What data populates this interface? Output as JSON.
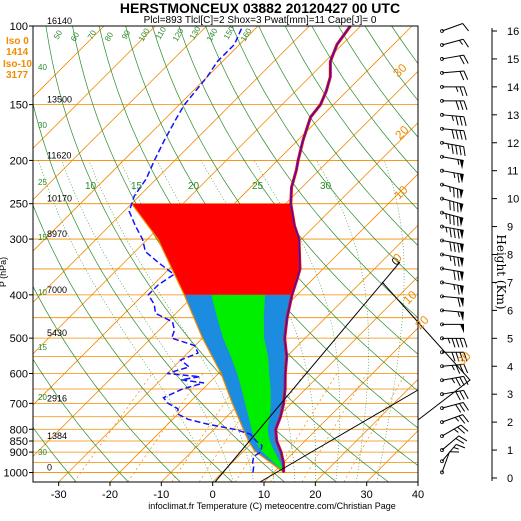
{
  "chart_data": {
    "type": "line",
    "title": "HERSTMONCEUX 03882 20120427 00 UTC",
    "subtitle": "Plcl=893 Tlcl[C]=2 Shox=3 Pwat[mm]=11 Cape[J]= 0",
    "footer": "infoclimat.fr Temperature (C) meteocentre.com/Christian Page",
    "ylabel": "P (hPa)",
    "y2label": "Height (Km)",
    "xlim": [
      -35,
      40
    ],
    "ylim": [
      1050,
      100
    ],
    "x_ticks": [
      "-30",
      "-20",
      "-10",
      "0",
      "10",
      "20",
      "30",
      "40"
    ],
    "p_ticks": [
      {
        "p": 100,
        "label": "100"
      },
      {
        "p": 150,
        "label": "150"
      },
      {
        "p": 200,
        "label": "200"
      },
      {
        "p": 250,
        "label": "250"
      },
      {
        "p": 300,
        "label": "300"
      },
      {
        "p": 400,
        "label": "400"
      },
      {
        "p": 500,
        "label": "500"
      },
      {
        "p": 600,
        "label": "600"
      },
      {
        "p": 700,
        "label": "700"
      },
      {
        "p": 800,
        "label": "800"
      },
      {
        "p": 850,
        "label": "850"
      },
      {
        "p": 900,
        "label": "900"
      },
      {
        "p": 1000,
        "label": "1000"
      }
    ],
    "height_ticks_km": [
      0,
      1,
      2,
      3,
      4,
      5,
      6,
      7,
      8,
      9,
      10,
      11,
      12,
      13,
      14,
      15,
      16
    ],
    "geopotential_labels": [
      {
        "p": 100,
        "label": "16140"
      },
      {
        "p": 150,
        "label": "13500"
      },
      {
        "p": 200,
        "label": "11620"
      },
      {
        "p": 250,
        "label": "10170"
      },
      {
        "p": 300,
        "label": "8970"
      },
      {
        "p": 400,
        "label": "7000"
      },
      {
        "p": 500,
        "label": "5430"
      },
      {
        "p": 700,
        "label": "2916"
      },
      {
        "p": 850,
        "label": "1384"
      },
      {
        "p": 1000,
        "label": "0"
      }
    ],
    "iso_labels": [
      "Iso 0",
      "1414",
      "Iso-10",
      "3177"
    ],
    "mixing_ratio_labels": [
      "50",
      "60",
      "70",
      "80",
      "90",
      "100",
      "110",
      "120",
      "130",
      "140",
      "150",
      "160"
    ],
    "theta_labels": [
      "10",
      "15",
      "20",
      "25",
      "30"
    ],
    "orange_labels": [
      "30",
      "20",
      "10",
      "0",
      "10",
      "20",
      "30"
    ],
    "hodo_label": "0",
    "side_green_labels": [
      "40",
      "30",
      "25",
      "15",
      "10",
      "15",
      "20",
      "30"
    ],
    "temperature": [
      {
        "p": 1000,
        "t": 12.0
      },
      {
        "p": 950,
        "t": 10.0
      },
      {
        "p": 900,
        "t": 7.5
      },
      {
        "p": 850,
        "t": 4.5
      },
      {
        "p": 800,
        "t": 2.0
      },
      {
        "p": 750,
        "t": 0.5
      },
      {
        "p": 700,
        "t": -1.5
      },
      {
        "p": 650,
        "t": -4.0
      },
      {
        "p": 600,
        "t": -7.0
      },
      {
        "p": 550,
        "t": -10.0
      },
      {
        "p": 500,
        "t": -14.0
      },
      {
        "p": 450,
        "t": -17.5
      },
      {
        "p": 400,
        "t": -21.0
      },
      {
        "p": 370,
        "t": -23.0
      },
      {
        "p": 350,
        "t": -24.5
      },
      {
        "p": 320,
        "t": -28.0
      },
      {
        "p": 300,
        "t": -30.5
      },
      {
        "p": 280,
        "t": -34.0
      },
      {
        "p": 250,
        "t": -39.0
      },
      {
        "p": 230,
        "t": -42.0
      },
      {
        "p": 210,
        "t": -44.5
      },
      {
        "p": 200,
        "t": -46.0
      },
      {
        "p": 180,
        "t": -49.0
      },
      {
        "p": 160,
        "t": -52.0
      },
      {
        "p": 150,
        "t": -52.5
      },
      {
        "p": 140,
        "t": -54.0
      },
      {
        "p": 130,
        "t": -56.0
      },
      {
        "p": 120,
        "t": -59.0
      },
      {
        "p": 110,
        "t": -61.0
      },
      {
        "p": 100,
        "t": -62.0
      }
    ],
    "dewpoint": [
      {
        "p": 1000,
        "t": 6.0
      },
      {
        "p": 970,
        "t": 5.0
      },
      {
        "p": 950,
        "t": 4.0
      },
      {
        "p": 920,
        "t": 3.0
      },
      {
        "p": 900,
        "t": 3.5
      },
      {
        "p": 870,
        "t": 2.5
      },
      {
        "p": 850,
        "t": 0.5
      },
      {
        "p": 820,
        "t": -2.0
      },
      {
        "p": 800,
        "t": -6.0
      },
      {
        "p": 780,
        "t": -12.0
      },
      {
        "p": 760,
        "t": -17.0
      },
      {
        "p": 740,
        "t": -20.0
      },
      {
        "p": 720,
        "t": -21.0
      },
      {
        "p": 700,
        "t": -24.0
      },
      {
        "p": 680,
        "t": -26.0
      },
      {
        "p": 650,
        "t": -24.0
      },
      {
        "p": 630,
        "t": -21.0
      },
      {
        "p": 620,
        "t": -26.0
      },
      {
        "p": 610,
        "t": -23.0
      },
      {
        "p": 600,
        "t": -30.0
      },
      {
        "p": 580,
        "t": -27.0
      },
      {
        "p": 560,
        "t": -30.0
      },
      {
        "p": 540,
        "t": -28.0
      },
      {
        "p": 520,
        "t": -30.0
      },
      {
        "p": 500,
        "t": -36.0
      },
      {
        "p": 480,
        "t": -37.0
      },
      {
        "p": 460,
        "t": -39.0
      },
      {
        "p": 440,
        "t": -44.0
      },
      {
        "p": 420,
        "t": -46.0
      },
      {
        "p": 400,
        "t": -49.0
      },
      {
        "p": 380,
        "t": -49.0
      },
      {
        "p": 360,
        "t": -48.0
      },
      {
        "p": 340,
        "t": -53.0
      },
      {
        "p": 320,
        "t": -58.0
      },
      {
        "p": 300,
        "t": -61.0
      },
      {
        "p": 280,
        "t": -65.0
      },
      {
        "p": 260,
        "t": -69.0
      },
      {
        "p": 240,
        "t": -71.0
      },
      {
        "p": 220,
        "t": -72.0
      },
      {
        "p": 200,
        "t": -74.0
      },
      {
        "p": 180,
        "t": -76.0
      },
      {
        "p": 160,
        "t": -78.0
      },
      {
        "p": 150,
        "t": -79.0
      },
      {
        "p": 130,
        "t": -80.0
      },
      {
        "p": 120,
        "t": -81.0
      },
      {
        "p": 110,
        "t": -81.0
      },
      {
        "p": 100,
        "t": -83.0
      }
    ],
    "parcel": [
      {
        "p": 1000,
        "t": 12.0
      },
      {
        "p": 950,
        "t": 7.5
      },
      {
        "p": 893,
        "t": 2.0
      },
      {
        "p": 850,
        "t": -1.0
      },
      {
        "p": 800,
        "t": -4.3
      },
      {
        "p": 700,
        "t": -11.5
      },
      {
        "p": 600,
        "t": -19.5
      },
      {
        "p": 500,
        "t": -30.0
      },
      {
        "p": 400,
        "t": -42.0
      },
      {
        "p": 300,
        "t": -58.0
      },
      {
        "p": 250,
        "t": -70.0
      }
    ],
    "wind_profile": [
      {
        "km": 0.2,
        "dir": 200,
        "kt": 10
      },
      {
        "km": 0.6,
        "dir": 220,
        "kt": 15
      },
      {
        "km": 1.0,
        "dir": 230,
        "kt": 20
      },
      {
        "km": 1.5,
        "dir": 240,
        "kt": 25
      },
      {
        "km": 2.0,
        "dir": 250,
        "kt": 25
      },
      {
        "km": 2.5,
        "dir": 255,
        "kt": 30
      },
      {
        "km": 3.0,
        "dir": 260,
        "kt": 30
      },
      {
        "km": 3.5,
        "dir": 260,
        "kt": 35
      },
      {
        "km": 4.0,
        "dir": 265,
        "kt": 35
      },
      {
        "km": 4.5,
        "dir": 270,
        "kt": 40
      },
      {
        "km": 5.0,
        "dir": 270,
        "kt": 45
      },
      {
        "km": 5.5,
        "dir": 270,
        "kt": 50
      },
      {
        "km": 6.0,
        "dir": 275,
        "kt": 55
      },
      {
        "km": 6.5,
        "dir": 275,
        "kt": 60
      },
      {
        "km": 7.0,
        "dir": 280,
        "kt": 65
      },
      {
        "km": 7.5,
        "dir": 280,
        "kt": 70
      },
      {
        "km": 8.0,
        "dir": 280,
        "kt": 75
      },
      {
        "km": 8.5,
        "dir": 280,
        "kt": 80
      },
      {
        "km": 9.0,
        "dir": 280,
        "kt": 85
      },
      {
        "km": 9.5,
        "dir": 285,
        "kt": 85
      },
      {
        "km": 10.0,
        "dir": 285,
        "kt": 80
      },
      {
        "km": 10.5,
        "dir": 285,
        "kt": 75
      },
      {
        "km": 11.0,
        "dir": 280,
        "kt": 65
      },
      {
        "km": 11.5,
        "dir": 280,
        "kt": 55
      },
      {
        "km": 12.0,
        "dir": 280,
        "kt": 45
      },
      {
        "km": 12.5,
        "dir": 275,
        "kt": 40
      },
      {
        "km": 13.0,
        "dir": 275,
        "kt": 35
      },
      {
        "km": 13.5,
        "dir": 270,
        "kt": 30
      },
      {
        "km": 14.0,
        "dir": 270,
        "kt": 25
      },
      {
        "km": 14.5,
        "dir": 265,
        "kt": 20
      },
      {
        "km": 15.0,
        "dir": 260,
        "kt": 20
      },
      {
        "km": 15.5,
        "dir": 255,
        "kt": 15
      },
      {
        "km": 16.0,
        "dir": 250,
        "kt": 10
      }
    ],
    "colors": {
      "temperature": "#ff0000",
      "temperature_inner": "#1b1bd8",
      "dewpoint": "#1212ff",
      "parcel": "#f08c00",
      "isobar": "#f08c00",
      "isotherm": "#f08c00",
      "dry_adiabat": "#2a8a2a",
      "moist_adiabat": "#2a8a2a",
      "mixing_ratio": "#f08c00",
      "cape_fill": "#ff0000",
      "low_fill_green": "#00ee00",
      "low_fill_blue": "#1b8ce0",
      "hodograph": "#000000"
    }
  }
}
